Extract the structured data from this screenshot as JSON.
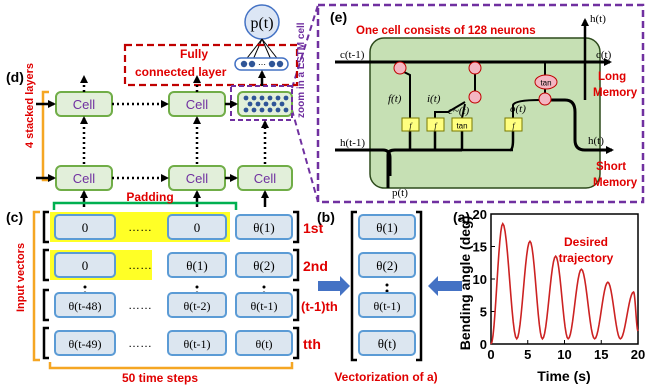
{
  "panels": {
    "a": "(a)",
    "b": "(b)",
    "c": "(c)",
    "d": "(d)",
    "e": "(e)"
  },
  "top": {
    "output_node": "p(t)",
    "fc_label_1": "Fully",
    "fc_label_2": "connected layer",
    "zoom_label": "zoom in a LSTM cell"
  },
  "stack": {
    "side_label": "4 stacked layers",
    "cell_label": "Cell",
    "padding_label": "Padding",
    "dots": "……"
  },
  "input": {
    "side_label": "Input vectors",
    "rows": [
      {
        "c1": "0",
        "c2": "0",
        "c3": "θ(1)",
        "tag": "1st"
      },
      {
        "c1": "0",
        "c2": "θ(1)",
        "c3": "θ(2)",
        "tag": "2nd"
      },
      {
        "c1": "θ(t-48)",
        "c2": "θ(t-2)",
        "c3": "θ(t-1)",
        "tag": "(t-1)th"
      },
      {
        "c1": "θ(t-49)",
        "c2": "θ(t-1)",
        "c3": "θ(t)",
        "tag": "tth"
      }
    ],
    "bottom_label": "50 time steps",
    "dots": "……"
  },
  "vector": {
    "items": [
      "θ(1)",
      "θ(2)",
      "θ(t-1)",
      "θ(t)"
    ],
    "caption": "Vectorization of a)"
  },
  "lstm": {
    "title": "One cell consists of 128 neurons",
    "h_top": "h(t)",
    "c_prev": "c(t-1)",
    "c_next": "c(t)",
    "h_prev": "h(t-1)",
    "h_next": "h(t)",
    "input": "p(t)",
    "f": "f(t)",
    "i": "i(t)",
    "c_tilde": "c~(t)",
    "o": "o(t)",
    "long_1": "Long",
    "long_2": "Memory",
    "short_1": "Short",
    "short_2": "Memory",
    "gate_labels": [
      "f",
      "f",
      "tan",
      "f"
    ],
    "tan_node": "tan"
  },
  "chart_data": {
    "type": "line",
    "title": "",
    "legend": "Desired trajectory",
    "xlabel": "Time (s)",
    "ylabel": "Bending angle (deg)",
    "xlim": [
      0,
      20
    ],
    "ylim": [
      0,
      20
    ],
    "xticks": [
      0,
      5,
      10,
      15,
      20
    ],
    "yticks": [
      0,
      5,
      10,
      15,
      20
    ],
    "color": "#cc2222",
    "peaks": [
      {
        "t": 1.6,
        "deg": 18.5
      },
      {
        "t": 5.3,
        "deg": 15.8
      },
      {
        "t": 8.8,
        "deg": 13.5
      },
      {
        "t": 12.3,
        "deg": 11.5
      },
      {
        "t": 15.9,
        "deg": 9.5
      },
      {
        "t": 19.4,
        "deg": 8.0
      }
    ],
    "troughs": [
      {
        "t": 0.0,
        "deg": 0.0
      },
      {
        "t": 3.5,
        "deg": 0.8
      },
      {
        "t": 7.0,
        "deg": 0.8
      },
      {
        "t": 10.5,
        "deg": 0.8
      },
      {
        "t": 14.1,
        "deg": 0.8
      },
      {
        "t": 17.6,
        "deg": 0.8
      },
      {
        "t": 20.0,
        "deg": 2.0
      }
    ]
  }
}
